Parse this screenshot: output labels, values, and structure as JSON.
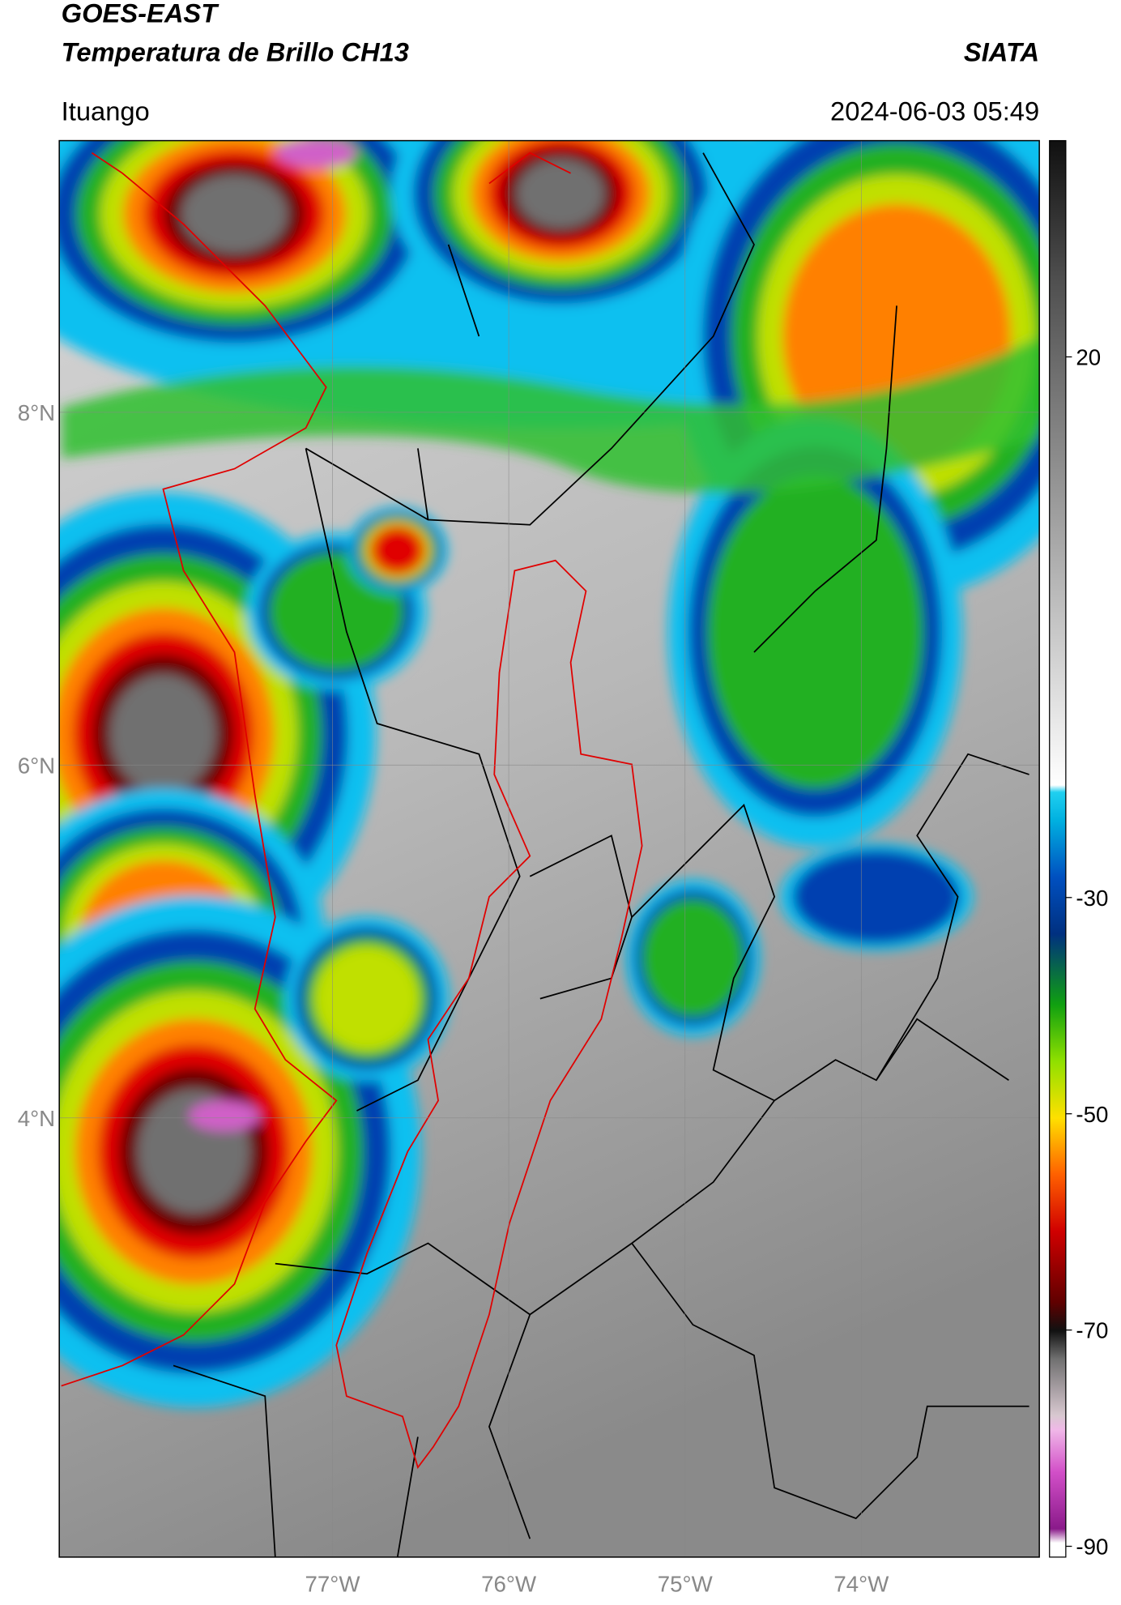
{
  "header": {
    "title": "GOES-EAST",
    "subtitle": "Temperatura de Brillo CH13",
    "brand": "SIATA",
    "location": "Ituango",
    "timestamp": "2024-06-03 05:49"
  },
  "map": {
    "lon_range": [
      -78.55,
      -72.99
    ],
    "lat_range": [
      1.51,
      9.54
    ],
    "lon_ticks": [
      {
        "value": -77,
        "label": "77°W"
      },
      {
        "value": -76,
        "label": "76°W"
      },
      {
        "value": -75,
        "label": "75°W"
      },
      {
        "value": -74,
        "label": "74°W"
      }
    ],
    "lat_ticks": [
      {
        "value": 8,
        "label": "8°N"
      },
      {
        "value": 6,
        "label": "6°N"
      },
      {
        "value": 4,
        "label": "4°N"
      }
    ]
  },
  "colorbar": {
    "range": [
      -91,
      40
    ],
    "ticks": [
      20,
      -30,
      -50,
      -70,
      -90
    ]
  }
}
